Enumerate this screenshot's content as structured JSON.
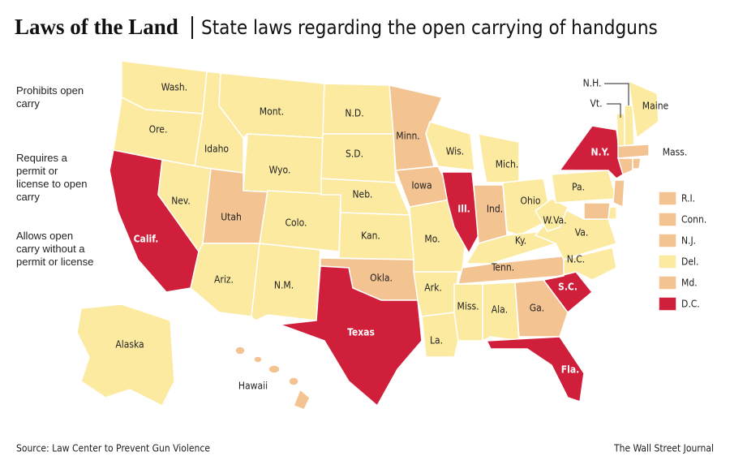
{
  "header": {
    "title": "Laws of the Land",
    "subtitle": "State laws regarding the open carrying of handguns"
  },
  "legend": [
    {
      "label": "Prohibits open carry"
    },
    {
      "label": "Requires a permit or license to open carry"
    },
    {
      "label": "Allows open carry without a permit or license"
    }
  ],
  "states": [
    "Wash.",
    "Ore.",
    "Idaho",
    "Calif.",
    "Nev.",
    "Utah",
    "Ariz.",
    "Mont.",
    "Wyo.",
    "Colo.",
    "N.M.",
    "N.D.",
    "S.D.",
    "Neb.",
    "Kan.",
    "Okla.",
    "Texas",
    "Minn.",
    "Iowa",
    "Mo.",
    "Ark.",
    "La.",
    "Wis.",
    "Ill.",
    "Mich.",
    "Ind.",
    "Ohio",
    "Ky.",
    "Tenn.",
    "Miss.",
    "Ala.",
    "Ga.",
    "Fla.",
    "S.C.",
    "N.C.",
    "Va.",
    "W.Va.",
    "Pa.",
    "N.Y.",
    "N.H.",
    "Vt.",
    "Maine",
    "Mass.",
    "Alaska",
    "Hawaii"
  ],
  "small_states": [
    "R.I.",
    "Conn.",
    "N.J.",
    "Del.",
    "Md.",
    "D.C."
  ],
  "footer": {
    "source": "Source: Law Center to Prevent Gun Violence",
    "credit": "The Wall Street Journal"
  }
}
